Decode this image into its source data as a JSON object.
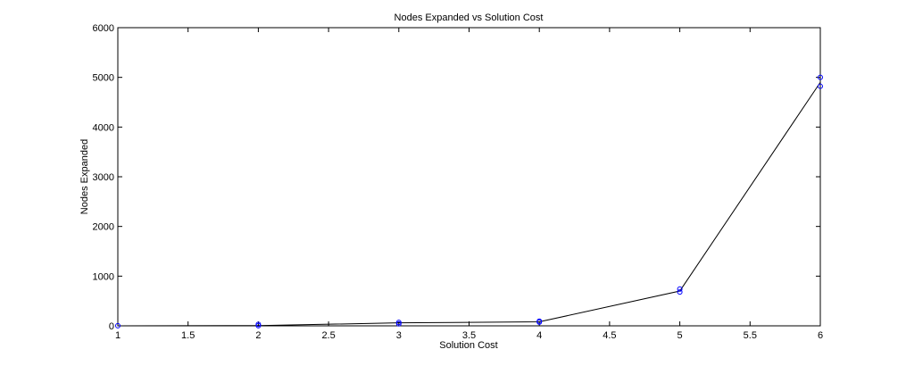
{
  "chart_data": {
    "type": "scatter",
    "title": "Nodes Expanded vs Solution Cost",
    "xlabel": "Solution Cost",
    "ylabel": "Nodes Expanded",
    "xlim": [
      1,
      6
    ],
    "ylim": [
      0,
      6000
    ],
    "xticks": [
      "1",
      "1.5",
      "2",
      "2.5",
      "3",
      "3.5",
      "4",
      "4.5",
      "5",
      "5.5",
      "6"
    ],
    "yticks": [
      "0",
      "1000",
      "2000",
      "3000",
      "4000",
      "5000",
      "6000"
    ],
    "grid": false,
    "line_color": "#000000",
    "marker_color": "#0000ff",
    "line": {
      "x": [
        1,
        2,
        3,
        4,
        5,
        6
      ],
      "y": [
        0,
        5,
        60,
        80,
        700,
        4900
      ]
    },
    "points": [
      {
        "x": 1,
        "y": 2
      },
      {
        "x": 2,
        "y": 3
      },
      {
        "x": 2,
        "y": 30
      },
      {
        "x": 3,
        "y": 40
      },
      {
        "x": 3,
        "y": 70
      },
      {
        "x": 4,
        "y": 75
      },
      {
        "x": 4,
        "y": 95
      },
      {
        "x": 5,
        "y": 680
      },
      {
        "x": 5,
        "y": 740
      },
      {
        "x": 6,
        "y": 4820
      },
      {
        "x": 6,
        "y": 5000
      }
    ]
  }
}
